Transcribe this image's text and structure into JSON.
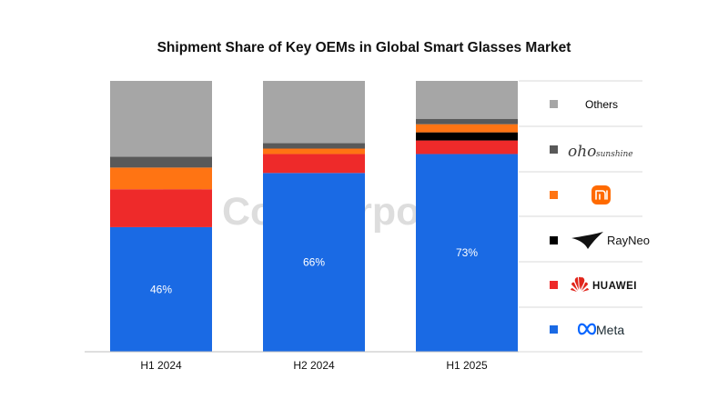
{
  "chart_data": {
    "type": "bar",
    "stacked": true,
    "title": "Shipment Share of Key OEMs in Global Smart Glasses Market",
    "categories": [
      "H1 2024",
      "H2 2024",
      "H1 2025"
    ],
    "ylim": [
      0,
      100
    ],
    "grid": false,
    "legend_placement": "right",
    "series": [
      {
        "name": "Meta",
        "color": "#1a6ae4",
        "values": [
          46,
          66,
          73
        ],
        "labels": [
          "46%",
          "66%",
          "73%"
        ]
      },
      {
        "name": "HUAWEI",
        "color": "#ee2a2a",
        "values": [
          14,
          7,
          5
        ],
        "labels": [
          "",
          "",
          ""
        ]
      },
      {
        "name": "RayNeo",
        "color": "#000000",
        "values": [
          0,
          0,
          3
        ],
        "labels": [
          "",
          "",
          ""
        ]
      },
      {
        "name": "Xiaomi",
        "color": "#ff7413",
        "values": [
          8,
          2,
          3
        ],
        "labels": [
          "",
          "",
          ""
        ]
      },
      {
        "name": "oho sunshine",
        "color": "#595959",
        "values": [
          4,
          2,
          2
        ],
        "labels": [
          "",
          "",
          ""
        ]
      },
      {
        "name": "Others",
        "color": "#a6a6a6",
        "values": [
          28,
          23,
          14
        ],
        "labels": [
          "",
          "",
          ""
        ]
      }
    ]
  },
  "legend": {
    "others_label": "Others",
    "oho_logo": "oho",
    "oho_logo_suffix": "sunshine",
    "rayneo_label": "RayNeo",
    "huawei_label": "HUAWEI",
    "meta_label": "Meta"
  },
  "watermark": "Counterpoint"
}
